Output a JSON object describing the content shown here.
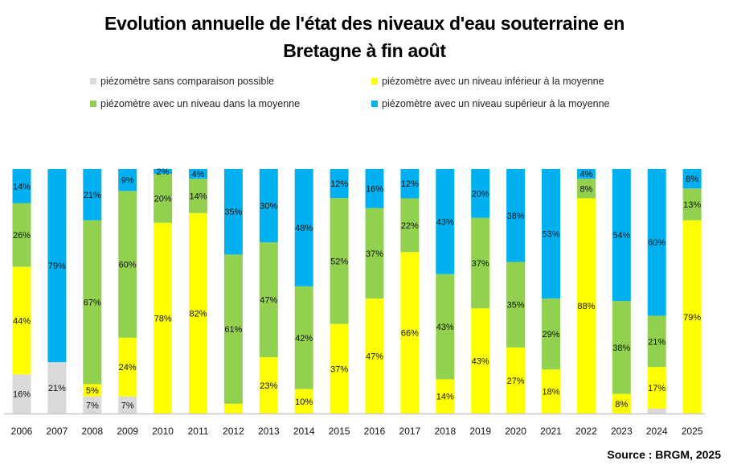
{
  "chart_data": {
    "type": "bar",
    "stacked": true,
    "percent_stacked": true,
    "title": "Evolution annuelle de l'état des niveaux d'eau souterraine en Bretagne à fin août",
    "title_lines": [
      "Evolution annuelle de l'état des niveaux d'eau souterraine en",
      "Bretagne à fin août"
    ],
    "ylim": [
      0,
      100
    ],
    "grid": false,
    "legend_placement": "top",
    "categories": [
      "2006",
      "2007",
      "2008",
      "2009",
      "2010",
      "2011",
      "2012",
      "2013",
      "2014",
      "2015",
      "2016",
      "2017",
      "2018",
      "2019",
      "2020",
      "2021",
      "2022",
      "2023",
      "2024",
      "2025"
    ],
    "series": [
      {
        "name": "piézomètre sans comparaison possible",
        "color": "#D9D9D9",
        "values": [
          16,
          21,
          7,
          7,
          0,
          0,
          0,
          0,
          0,
          0,
          0,
          0,
          0,
          0,
          0,
          0,
          0,
          0,
          2,
          0
        ]
      },
      {
        "name": "piézomètre avec un niveau inférieur à la moyenne",
        "color": "#FFFF00",
        "values": [
          44,
          0,
          5,
          24,
          78,
          82,
          4,
          23,
          10,
          37,
          47,
          66,
          14,
          43,
          27,
          18,
          88,
          8,
          17,
          79
        ]
      },
      {
        "name": "piézomètre avec un niveau dans la moyenne",
        "color": "#92D050",
        "values": [
          26,
          0,
          67,
          60,
          20,
          14,
          61,
          47,
          42,
          52,
          37,
          22,
          43,
          37,
          35,
          29,
          8,
          38,
          21,
          13
        ]
      },
      {
        "name": "piézomètre avec un niveau supérieur à la moyenne",
        "color": "#00B0F0",
        "values": [
          14,
          79,
          21,
          9,
          2,
          4,
          35,
          30,
          48,
          12,
          16,
          12,
          43,
          20,
          38,
          53,
          4,
          54,
          60,
          8
        ]
      }
    ],
    "unlabeled_segments": [
      [
        "2012",
        1
      ],
      [
        "2024",
        0
      ]
    ],
    "label_suffix": "%"
  },
  "source": "Source : BRGM, 2025"
}
